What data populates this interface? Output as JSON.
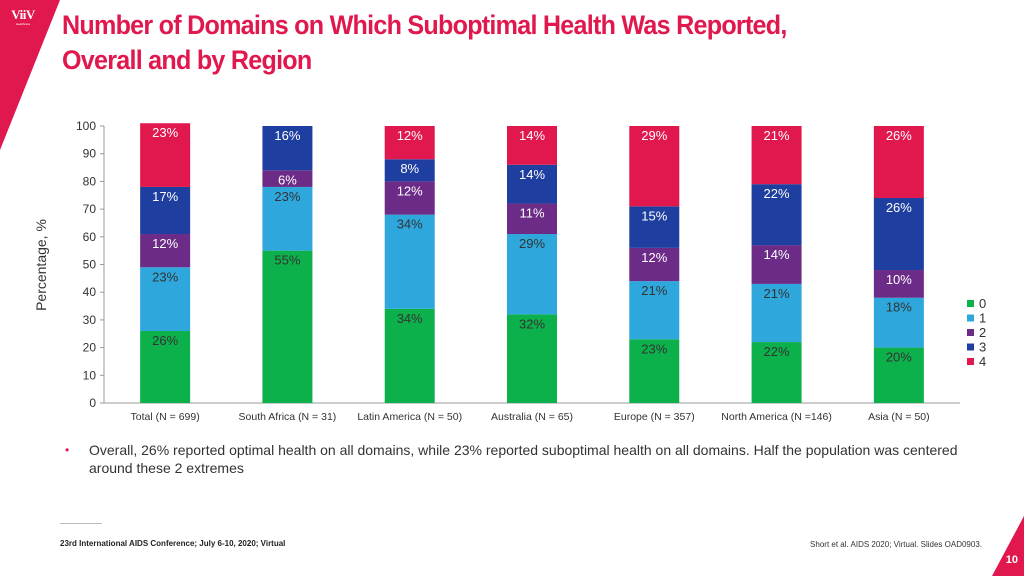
{
  "brand": {
    "logo_text": "ViiV",
    "logo_sub": "Healthcare",
    "accent": "#e0184d"
  },
  "title_line1": "Number of Domains on Which Suboptimal Health Was Reported,",
  "title_line2": "Overall and by Region",
  "bullet": "Overall, 26% reported optimal health on all domains, while 23% reported suboptimal health on all domains. Half the population was centered around these 2 extremes",
  "footer": {
    "conference": "23rd International AIDS Conference; July 6-10, 2020; Virtual",
    "citation": "Short et al. AIDS 2020; Virtual. Slides OAD0903.",
    "page": "10"
  },
  "chart_data": {
    "type": "bar",
    "stacked": true,
    "ylabel": "Percentage, %",
    "ylim": [
      0,
      100
    ],
    "yticks": [
      0,
      10,
      20,
      30,
      40,
      50,
      60,
      70,
      80,
      90,
      100
    ],
    "categories": [
      "Total (N = 699)",
      "South Africa (N = 31)",
      "Latin America (N = 50)",
      "Australia (N = 65)",
      "Europe (N = 357)",
      "North America (N =146)",
      "Asia (N = 50)"
    ],
    "series": [
      {
        "name": "0",
        "color": "#0db14b",
        "values": [
          26,
          55,
          34,
          32,
          23,
          22,
          20
        ]
      },
      {
        "name": "1",
        "color": "#2ea7dd",
        "values": [
          23,
          23,
          34,
          29,
          21,
          21,
          18
        ]
      },
      {
        "name": "2",
        "color": "#6b2b86",
        "values": [
          12,
          6,
          12,
          11,
          12,
          14,
          10
        ]
      },
      {
        "name": "3",
        "color": "#1e3fa0",
        "values": [
          17,
          16,
          8,
          14,
          15,
          22,
          26
        ]
      },
      {
        "name": "4",
        "color": "#e0184d",
        "values": [
          23,
          0,
          12,
          14,
          29,
          21,
          26
        ]
      }
    ],
    "legend_position": "right"
  }
}
